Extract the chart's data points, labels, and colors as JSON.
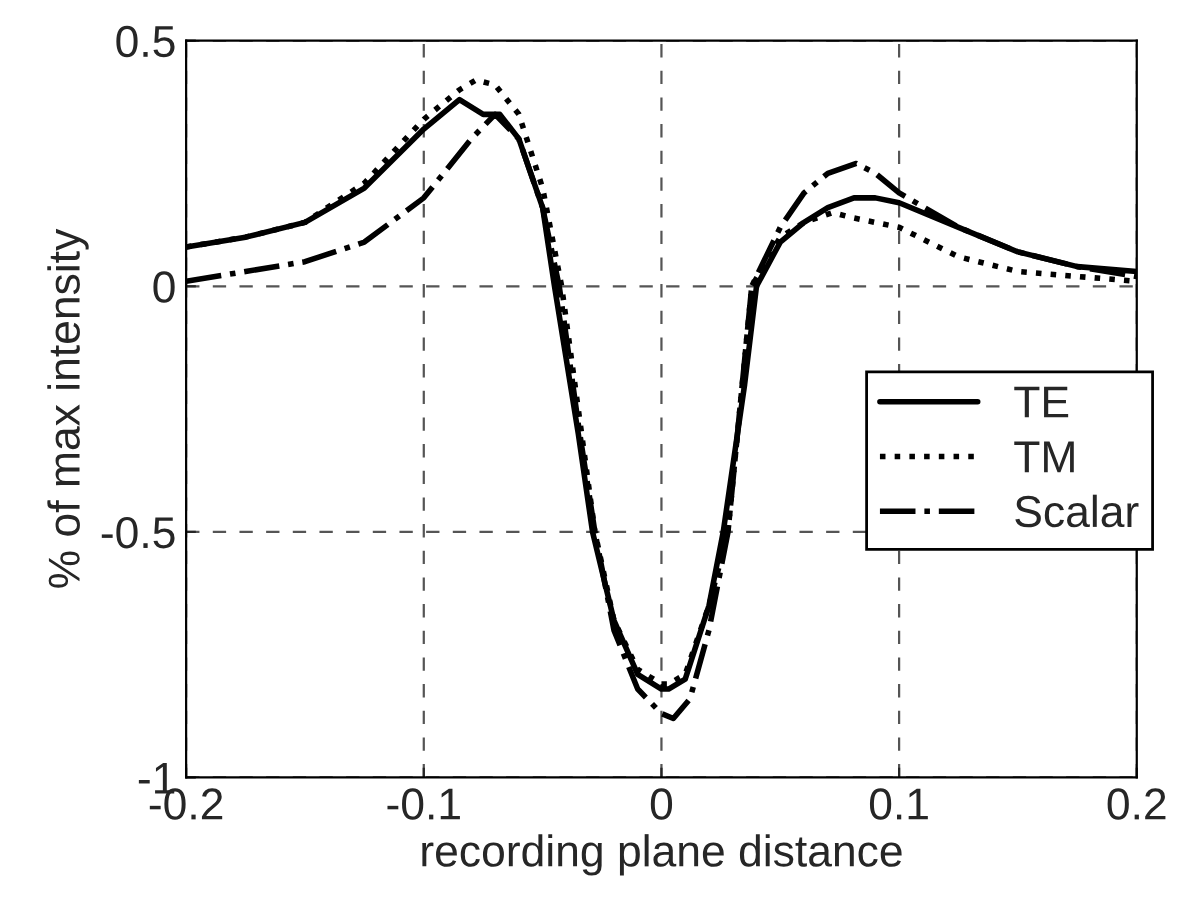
{
  "chart_data": {
    "type": "line",
    "xlabel": "recording plane distance",
    "ylabel": "% of max intensity",
    "xlim": [
      -0.2,
      0.2
    ],
    "xticks": [
      -0.2,
      -0.1,
      0,
      0.1,
      0.2
    ],
    "ylim": [
      -1,
      0.5
    ],
    "yticks": [
      -1,
      -0.5,
      0,
      0.5
    ],
    "grid": true,
    "legend": "right",
    "marker": "none",
    "series": [
      {
        "name": "TE",
        "color": "#000000",
        "line_style": "solid",
        "x": [
          -0.2,
          -0.175,
          -0.15,
          -0.125,
          -0.1,
          -0.085,
          -0.075,
          -0.068,
          -0.06,
          -0.05,
          -0.045,
          -0.035,
          -0.029,
          -0.02,
          -0.01,
          0,
          0.003,
          0.01,
          0.02,
          0.026,
          0.035,
          0.04,
          0.05,
          0.06,
          0.07,
          0.081,
          0.09,
          0.1,
          0.125,
          0.15,
          0.175,
          0.2
        ],
        "values": [
          0.08,
          0.1,
          0.13,
          0.2,
          0.32,
          0.38,
          0.35,
          0.35,
          0.3,
          0.16,
          0.0,
          -0.3,
          -0.5,
          -0.68,
          -0.79,
          -0.82,
          -0.82,
          -0.8,
          -0.65,
          -0.5,
          -0.2,
          0.0,
          0.09,
          0.13,
          0.16,
          0.18,
          0.18,
          0.17,
          0.12,
          0.07,
          0.04,
          0.03
        ]
      },
      {
        "name": "TM",
        "color": "#000000",
        "line_style": "dotted",
        "x": [
          -0.2,
          -0.175,
          -0.15,
          -0.125,
          -0.1,
          -0.085,
          -0.078,
          -0.07,
          -0.06,
          -0.05,
          -0.042,
          -0.035,
          -0.028,
          -0.02,
          -0.01,
          0,
          0.003,
          0.01,
          0.02,
          0.028,
          0.035,
          0.038,
          0.05,
          0.06,
          0.072,
          0.08,
          0.09,
          0.1,
          0.125,
          0.15,
          0.175,
          0.2
        ],
        "values": [
          0.08,
          0.1,
          0.13,
          0.21,
          0.34,
          0.4,
          0.42,
          0.41,
          0.35,
          0.2,
          0.0,
          -0.25,
          -0.5,
          -0.68,
          -0.78,
          -0.81,
          -0.81,
          -0.79,
          -0.65,
          -0.5,
          -0.15,
          0.0,
          0.1,
          0.13,
          0.15,
          0.14,
          0.13,
          0.12,
          0.06,
          0.03,
          0.02,
          0.01
        ]
      },
      {
        "name": "Scalar",
        "color": "#000000",
        "line_style": "dashdot",
        "x": [
          -0.2,
          -0.175,
          -0.15,
          -0.125,
          -0.1,
          -0.09,
          -0.08,
          -0.07,
          -0.06,
          -0.05,
          -0.043,
          -0.035,
          -0.028,
          -0.02,
          -0.01,
          0,
          0.005,
          0.012,
          0.02,
          0.028,
          0.035,
          0.038,
          0.05,
          0.06,
          0.07,
          0.082,
          0.09,
          0.1,
          0.125,
          0.15,
          0.175,
          0.2
        ],
        "values": [
          0.01,
          0.03,
          0.05,
          0.09,
          0.18,
          0.24,
          0.3,
          0.35,
          0.3,
          0.16,
          0.0,
          -0.28,
          -0.5,
          -0.7,
          -0.82,
          -0.87,
          -0.88,
          -0.84,
          -0.7,
          -0.5,
          -0.15,
          0.0,
          0.12,
          0.19,
          0.23,
          0.25,
          0.23,
          0.19,
          0.12,
          0.07,
          0.04,
          0.02
        ]
      }
    ]
  }
}
